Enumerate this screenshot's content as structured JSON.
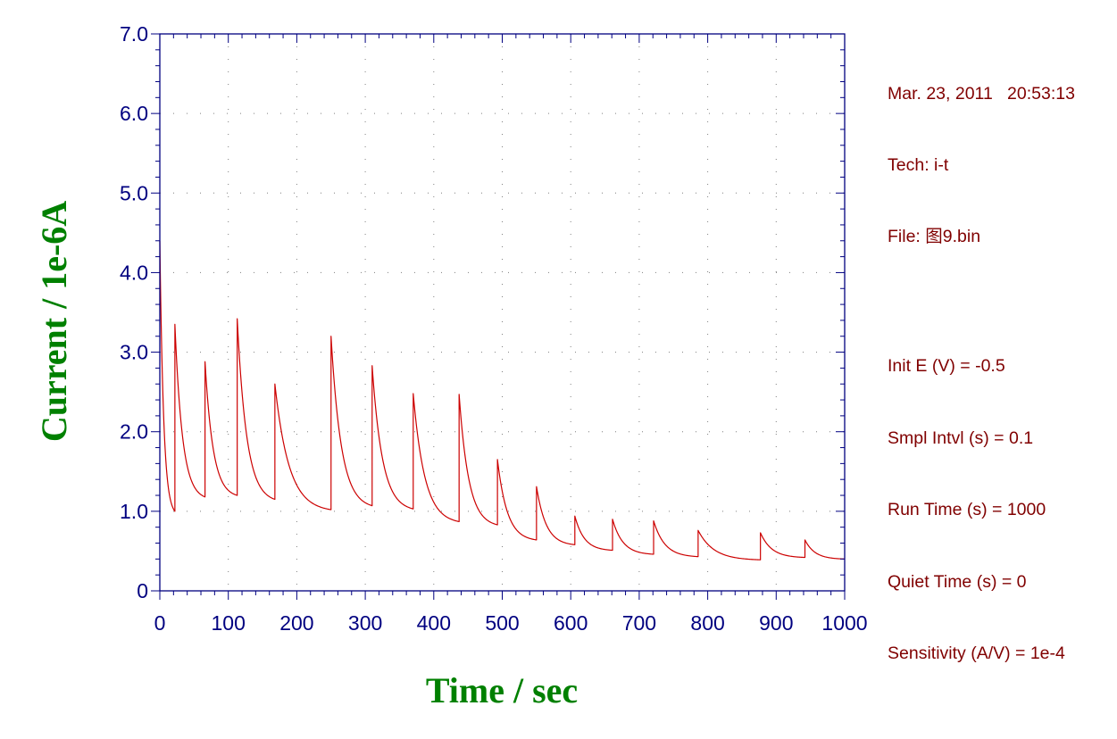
{
  "chart_data": {
    "type": "line",
    "xlabel": "Time / sec",
    "ylabel": "Current / 1e-6A",
    "xlim": [
      0,
      1000
    ],
    "ylim": [
      0,
      7.0
    ],
    "x_ticks": [
      "0",
      "100",
      "200",
      "300",
      "400",
      "500",
      "600",
      "700",
      "800",
      "900",
      "1000"
    ],
    "y_ticks": [
      "0",
      "1.0",
      "2.0",
      "3.0",
      "4.0",
      "5.0",
      "6.0",
      "7.0"
    ],
    "grid": true,
    "line_color": "#cc0000",
    "axis_color": "#000080",
    "series": [
      {
        "segments": [
          {
            "start": 0,
            "end": 22,
            "peak": 4.4,
            "base": 1.0
          },
          {
            "start": 22,
            "end": 66,
            "peak": 3.35,
            "base": 1.18
          },
          {
            "start": 66,
            "end": 113,
            "peak": 2.88,
            "base": 1.2
          },
          {
            "start": 113,
            "end": 168,
            "peak": 3.42,
            "base": 1.15
          },
          {
            "start": 168,
            "end": 250,
            "peak": 2.6,
            "base": 1.02
          },
          {
            "start": 250,
            "end": 310,
            "peak": 3.2,
            "base": 1.07
          },
          {
            "start": 310,
            "end": 370,
            "peak": 2.83,
            "base": 1.03
          },
          {
            "start": 370,
            "end": 437,
            "peak": 2.48,
            "base": 0.87
          },
          {
            "start": 437,
            "end": 493,
            "peak": 2.47,
            "base": 0.83
          },
          {
            "start": 493,
            "end": 550,
            "peak": 1.65,
            "base": 0.64
          },
          {
            "start": 550,
            "end": 606,
            "peak": 1.31,
            "base": 0.58
          },
          {
            "start": 606,
            "end": 661,
            "peak": 0.94,
            "base": 0.51
          },
          {
            "start": 661,
            "end": 721,
            "peak": 0.9,
            "base": 0.46
          },
          {
            "start": 721,
            "end": 786,
            "peak": 0.88,
            "base": 0.43
          },
          {
            "start": 786,
            "end": 877,
            "peak": 0.76,
            "base": 0.39
          },
          {
            "start": 877,
            "end": 942,
            "peak": 0.73,
            "base": 0.42
          },
          {
            "start": 942,
            "end": 1000,
            "peak": 0.64,
            "base": 0.4
          }
        ]
      }
    ]
  },
  "info": {
    "date_line": "Mar. 23, 2011   20:53:13",
    "tech": "Tech: i-t",
    "file": "File: 图9.bin",
    "init_e": "Init E (V) = -0.5",
    "smpl_intvl": "Smpl Intvl (s) = 0.1",
    "run_time": "Run Time (s) = 1000",
    "quiet_time": "Quiet Time (s) = 0",
    "sensitivity": "Sensitivity (A/V) = 1e-4"
  }
}
